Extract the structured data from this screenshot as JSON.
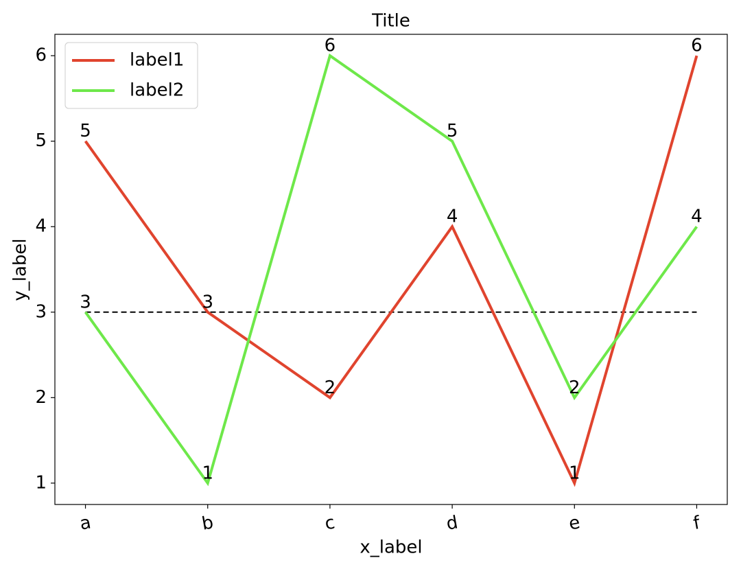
{
  "chart_data": {
    "type": "line",
    "title": "Title",
    "x_label": "x_label",
    "y_label": "y_label",
    "categories": [
      "a",
      "b",
      "c",
      "d",
      "e",
      "f"
    ],
    "series": [
      {
        "name": "label1",
        "color": "#e0442e",
        "values": [
          5,
          3,
          2,
          4,
          1,
          6
        ]
      },
      {
        "name": "label2",
        "color": "#6ee84a",
        "values": [
          3,
          1,
          6,
          5,
          2,
          4
        ]
      }
    ],
    "hline": 3,
    "ylim": [
      0.75,
      6.25
    ],
    "yticks": [
      1,
      2,
      3,
      4,
      5,
      6
    ],
    "grid": false,
    "legend": "upper left"
  }
}
